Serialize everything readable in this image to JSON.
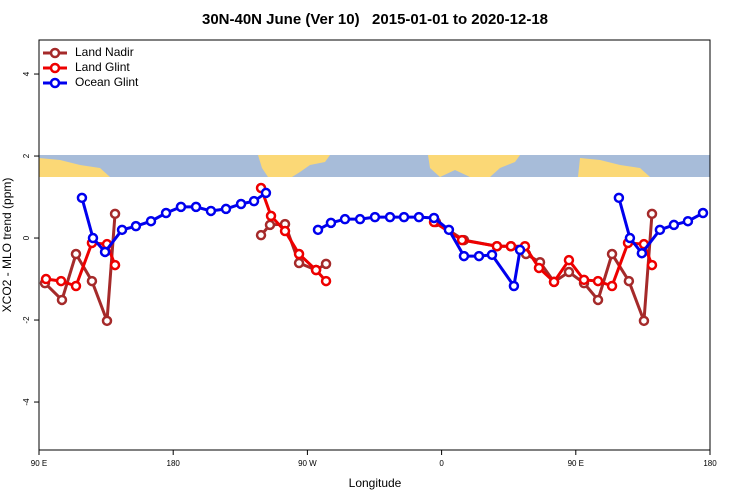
{
  "chart_data": {
    "type": "line",
    "title": "30N-40N June (Ver 10)   2015-01-01 to 2020-12-18",
    "xlabel": "Longitude",
    "ylabel": "XCO2 - MLO trend (ppm)",
    "xlim": [
      90,
      540
    ],
    "xticks": [
      {
        "value": 90,
        "label": "90 E"
      },
      180,
      {
        "value": 270,
        "label": "90 W"
      },
      {
        "value": 360,
        "label": "0"
      },
      {
        "value": 450,
        "label": "90 E"
      },
      {
        "value": 540,
        "label": "180"
      }
    ],
    "ylim": [
      -5.17,
      4.83
    ],
    "yticks": [
      -4,
      -2,
      0,
      2,
      4
    ],
    "legend": "top-left",
    "series": [
      {
        "name": "Land Nadir",
        "color": "#a52a2a",
        "x": [
          94,
          105.4,
          114.8,
          125.5,
          135.6,
          141,
          null,
          238.9,
          244.9,
          255,
          264.4,
          275.8,
          282.5,
          null,
          356.2,
          375,
          397.1,
          406.5,
          416.6,
          426,
          435.4,
          445.4,
          455.5,
          464.9,
          474.3,
          485.6,
          495.7,
          501.1
        ],
        "values": [
          -1.1,
          -1.51,
          -0.39,
          -1.05,
          -2.02,
          0.59,
          null,
          0.07,
          0.32,
          0.34,
          -0.61,
          -0.78,
          -0.63,
          null,
          0.39,
          -0.05,
          -0.2,
          -0.2,
          -0.39,
          -0.59,
          -1.07,
          -0.83,
          -1.1,
          -1.51,
          -0.39,
          -1.05,
          -2.02,
          0.59
        ]
      },
      {
        "name": "Land Glint",
        "color": "#ee0000",
        "x": [
          94.7,
          104.8,
          114.8,
          125.5,
          135.6,
          141,
          null,
          238.9,
          245.6,
          255,
          264.4,
          275.8,
          282.5,
          null,
          354.9,
          373.7,
          397.1,
          406.5,
          415.9,
          425.3,
          435.4,
          445.4,
          455.5,
          464.9,
          474.3,
          485,
          495.7,
          501.1
        ],
        "values": [
          -1.0,
          -1.05,
          -1.17,
          -0.12,
          -0.15,
          -0.66,
          null,
          1.22,
          0.54,
          0.17,
          -0.39,
          -0.78,
          -1.05,
          null,
          0.39,
          -0.05,
          -0.2,
          -0.2,
          -0.2,
          -0.73,
          -1.07,
          -0.54,
          -1.02,
          -1.05,
          -1.17,
          -0.12,
          -0.15,
          -0.66
        ]
      },
      {
        "name": "Ocean Glint",
        "color": "#0000ee",
        "x": [
          118.8,
          126.2,
          134.3,
          145.7,
          155,
          165.1,
          175.2,
          185.2,
          195.3,
          205.3,
          215.4,
          225.5,
          234.2,
          242.2,
          null,
          277.1,
          285.8,
          295.2,
          305.3,
          315.3,
          325.4,
          334.8,
          344.8,
          354.9,
          364.9,
          375,
          385.1,
          393.8,
          408.5,
          412.6,
          null,
          478.9,
          486.3,
          494.3,
          506.4,
          515.8,
          525.2,
          535.3
        ],
        "values": [
          0.98,
          0,
          -0.34,
          0.2,
          0.29,
          0.41,
          0.61,
          0.76,
          0.76,
          0.66,
          0.71,
          0.83,
          0.9,
          1.1,
          null,
          0.2,
          0.37,
          0.46,
          0.46,
          0.51,
          0.51,
          0.51,
          0.51,
          0.49,
          0.2,
          -0.44,
          -0.44,
          -0.41,
          -1.17,
          -0.29,
          null,
          0.98,
          0,
          -0.37,
          0.2,
          0.32,
          0.41,
          0.61
        ]
      }
    ]
  }
}
